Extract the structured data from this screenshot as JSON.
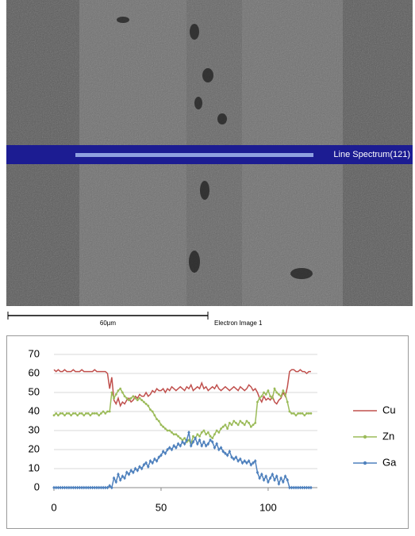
{
  "image": {
    "line_label": "Line Spectrum(121)",
    "scale_label": "60µm",
    "caption": "Electron Image 1"
  },
  "chart_data": {
    "type": "line",
    "x": [
      0,
      1,
      2,
      3,
      4,
      5,
      6,
      7,
      8,
      9,
      10,
      11,
      12,
      13,
      14,
      15,
      16,
      17,
      18,
      19,
      20,
      21,
      22,
      23,
      24,
      25,
      26,
      27,
      28,
      29,
      30,
      31,
      32,
      33,
      34,
      35,
      36,
      37,
      38,
      39,
      40,
      41,
      42,
      43,
      44,
      45,
      46,
      47,
      48,
      49,
      50,
      51,
      52,
      53,
      54,
      55,
      56,
      57,
      58,
      59,
      60,
      61,
      62,
      63,
      64,
      65,
      66,
      67,
      68,
      69,
      70,
      71,
      72,
      73,
      74,
      75,
      76,
      77,
      78,
      79,
      80,
      81,
      82,
      83,
      84,
      85,
      86,
      87,
      88,
      89,
      90,
      91,
      92,
      93,
      94,
      95,
      96,
      97,
      98,
      99,
      100,
      101,
      102,
      103,
      104,
      105,
      106,
      107,
      108,
      109,
      110,
      111,
      112,
      113,
      114,
      115,
      116,
      117,
      118,
      119,
      120
    ],
    "series": [
      {
        "name": "Cu",
        "color": "#c0504d",
        "marker": "none",
        "values": [
          62,
          61,
          62,
          61,
          61,
          62,
          61,
          61,
          61,
          62,
          61,
          61,
          61,
          62,
          61,
          61,
          61,
          61,
          61,
          62,
          61,
          61,
          61,
          61,
          61,
          60,
          52,
          58,
          46,
          44,
          47,
          43,
          45,
          44,
          46,
          47,
          45,
          46,
          48,
          47,
          49,
          48,
          48,
          50,
          48,
          49,
          51,
          50,
          52,
          51,
          51,
          52,
          50,
          52,
          51,
          53,
          52,
          51,
          52,
          53,
          52,
          51,
          53,
          52,
          54,
          51,
          52,
          53,
          52,
          55,
          52,
          53,
          51,
          52,
          53,
          52,
          54,
          52,
          51,
          52,
          53,
          52,
          51,
          52,
          53,
          52,
          51,
          53,
          52,
          51,
          52,
          54,
          53,
          51,
          52,
          50,
          47,
          45,
          48,
          46,
          47,
          46,
          48,
          45,
          44,
          46,
          47,
          50,
          48,
          53,
          61,
          62,
          62,
          61,
          61,
          62,
          61,
          61,
          60,
          61,
          61
        ]
      },
      {
        "name": "Zn",
        "color": "#9bbb59",
        "marker": "circle",
        "values": [
          38,
          39,
          38,
          39,
          39,
          38,
          39,
          39,
          38,
          39,
          39,
          38,
          39,
          39,
          38,
          39,
          39,
          38,
          39,
          39,
          39,
          38,
          39,
          40,
          39,
          40,
          40,
          50,
          47,
          49,
          51,
          52,
          50,
          48,
          47,
          46,
          47,
          48,
          47,
          46,
          47,
          46,
          45,
          44,
          43,
          41,
          40,
          38,
          36,
          35,
          33,
          32,
          31,
          30,
          30,
          29,
          28,
          28,
          27,
          26,
          25,
          26,
          24,
          25,
          23,
          27,
          26,
          28,
          27,
          29,
          30,
          28,
          29,
          27,
          26,
          28,
          30,
          29,
          31,
          32,
          33,
          31,
          34,
          33,
          35,
          34,
          33,
          35,
          34,
          33,
          35,
          34,
          32,
          33,
          34,
          45,
          47,
          48,
          50,
          49,
          51,
          48,
          47,
          52,
          50,
          49,
          48,
          51,
          49,
          45,
          40,
          39,
          39,
          38,
          39,
          39,
          39,
          38,
          39,
          39,
          39
        ]
      },
      {
        "name": "Ga",
        "color": "#4f81bd",
        "marker": "diamond",
        "values": [
          0,
          0,
          0,
          0,
          0,
          0,
          0,
          0,
          0,
          0,
          0,
          0,
          0,
          0,
          0,
          0,
          0,
          0,
          0,
          0,
          0,
          0,
          0,
          0,
          0,
          0,
          1,
          0,
          5,
          3,
          7,
          4,
          6,
          5,
          8,
          7,
          9,
          8,
          10,
          9,
          11,
          10,
          12,
          13,
          11,
          14,
          13,
          15,
          14,
          16,
          17,
          19,
          18,
          20,
          21,
          20,
          22,
          21,
          23,
          22,
          24,
          23,
          25,
          29,
          22,
          24,
          26,
          23,
          25,
          22,
          24,
          22,
          23,
          25,
          24,
          21,
          23,
          20,
          21,
          19,
          18,
          17,
          19,
          16,
          15,
          16,
          14,
          15,
          13,
          14,
          13,
          14,
          12,
          13,
          14,
          8,
          5,
          7,
          4,
          6,
          3,
          5,
          7,
          4,
          6,
          2,
          5,
          3,
          6,
          4,
          0,
          0,
          0,
          0,
          0,
          0,
          0,
          0,
          0,
          0,
          0
        ]
      }
    ],
    "xlim": [
      0,
      123
    ],
    "xticks": [
      0,
      50,
      100
    ],
    "ylim": [
      0,
      70
    ],
    "yticks": [
      0,
      10,
      20,
      30,
      40,
      50,
      60,
      70
    ],
    "grid": true
  }
}
